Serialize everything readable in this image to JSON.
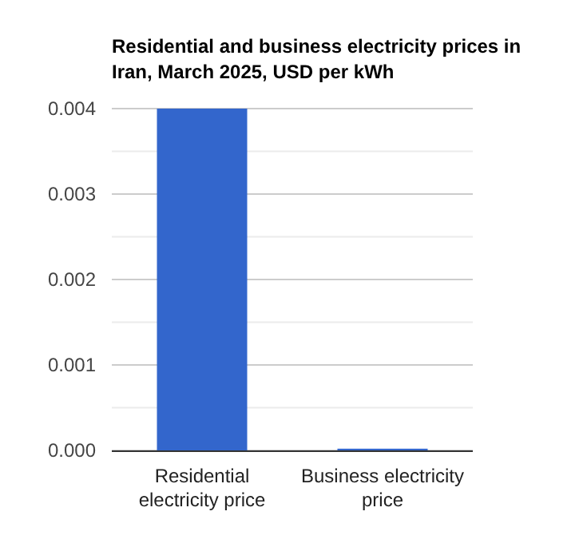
{
  "chart_data": {
    "type": "bar",
    "title": "Residential and business electricity prices in Iran, March 2025, USD per kWh",
    "categories": [
      "Residential electricity price",
      "Business electricity price"
    ],
    "values": [
      0.004,
      2e-05
    ],
    "color": "#3366cc",
    "ylim": [
      0,
      0.004
    ],
    "yticks": [
      {
        "value": 0,
        "label": "0.000"
      },
      {
        "value": 0.0005,
        "label": null
      },
      {
        "value": 0.001,
        "label": "0.001"
      },
      {
        "value": 0.0015,
        "label": null
      },
      {
        "value": 0.002,
        "label": "0.002"
      },
      {
        "value": 0.0025,
        "label": null
      },
      {
        "value": 0.003,
        "label": "0.003"
      },
      {
        "value": 0.0035,
        "label": null
      },
      {
        "value": 0.004,
        "label": "0.004"
      }
    ],
    "grid": true
  }
}
